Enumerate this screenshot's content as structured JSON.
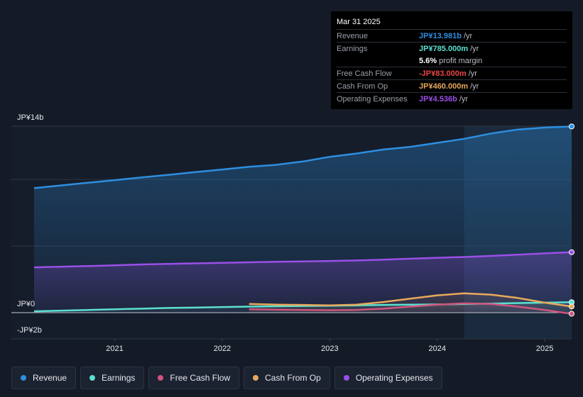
{
  "chart_data": {
    "type": "area",
    "title": "",
    "xlabel": "",
    "ylabel": "",
    "x_ticks": [
      "2021",
      "2022",
      "2023",
      "2024",
      "2025"
    ],
    "y_ticks": [
      "JP¥14b",
      "JP¥0",
      "-JP¥2b"
    ],
    "ylim": [
      -2,
      14
    ],
    "xlim": [
      2020.25,
      2025.25
    ],
    "series": [
      {
        "name": "Revenue",
        "color": "#2d8fe0",
        "x": [
          2020.25,
          2020.75,
          2021.0,
          2021.25,
          2021.5,
          2021.75,
          2022.0,
          2022.25,
          2022.5,
          2022.75,
          2023.0,
          2023.25,
          2023.5,
          2023.75,
          2024.0,
          2024.25,
          2024.5,
          2024.75,
          2025.0,
          2025.25
        ],
        "values": [
          9.35,
          9.75,
          9.95,
          10.15,
          10.35,
          10.55,
          10.75,
          10.95,
          11.1,
          11.35,
          11.7,
          11.95,
          12.25,
          12.45,
          12.75,
          13.05,
          13.45,
          13.75,
          13.9,
          13.98
        ]
      },
      {
        "name": "Earnings",
        "color": "#5ce0d0",
        "x": [
          2020.25,
          2020.75,
          2021.0,
          2021.25,
          2021.5,
          2021.75,
          2022.0,
          2022.25,
          2022.5,
          2022.75,
          2023.0,
          2023.25,
          2023.5,
          2023.75,
          2024.0,
          2024.25,
          2024.5,
          2024.75,
          2025.0,
          2025.25
        ],
        "values": [
          0.1,
          0.2,
          0.25,
          0.3,
          0.35,
          0.38,
          0.42,
          0.45,
          0.48,
          0.5,
          0.52,
          0.55,
          0.58,
          0.6,
          0.62,
          0.65,
          0.68,
          0.72,
          0.75,
          0.785
        ]
      },
      {
        "name": "Free Cash Flow",
        "color": "#d0557e",
        "x": [
          2022.25,
          2022.5,
          2022.75,
          2023.0,
          2023.25,
          2023.5,
          2023.75,
          2024.0,
          2024.25,
          2024.5,
          2024.75,
          2025.0,
          2025.25
        ],
        "values": [
          0.25,
          0.22,
          0.2,
          0.18,
          0.2,
          0.3,
          0.45,
          0.6,
          0.7,
          0.65,
          0.45,
          0.2,
          -0.083
        ]
      },
      {
        "name": "Cash From Op",
        "color": "#e8a95c",
        "x": [
          2022.25,
          2022.5,
          2022.75,
          2023.0,
          2023.25,
          2023.5,
          2023.75,
          2024.0,
          2024.25,
          2024.5,
          2024.75,
          2025.0,
          2025.25
        ],
        "values": [
          0.65,
          0.6,
          0.58,
          0.55,
          0.6,
          0.8,
          1.05,
          1.3,
          1.45,
          1.35,
          1.1,
          0.75,
          0.46
        ]
      },
      {
        "name": "Operating Expenses",
        "color": "#9b4fe8",
        "x": [
          2020.25,
          2020.75,
          2021.0,
          2021.25,
          2021.5,
          2021.75,
          2022.0,
          2022.25,
          2022.5,
          2022.75,
          2023.0,
          2023.25,
          2023.5,
          2023.75,
          2024.0,
          2024.25,
          2024.5,
          2024.75,
          2025.0,
          2025.25
        ],
        "values": [
          3.4,
          3.5,
          3.55,
          3.62,
          3.66,
          3.7,
          3.74,
          3.78,
          3.82,
          3.85,
          3.88,
          3.92,
          3.98,
          4.05,
          4.12,
          4.18,
          4.26,
          4.35,
          4.45,
          4.536
        ]
      }
    ],
    "highlight_from": 2024.25,
    "legend_placement": "bottom-left",
    "grid": true
  },
  "tooltip": {
    "date": "Mar 31 2025",
    "rows": [
      {
        "label": "Revenue",
        "value": "JP¥13.981b",
        "unit": "/yr",
        "color": "#2d8fe0"
      },
      {
        "label": "Earnings",
        "value": "JP¥785.000m",
        "unit": "/yr",
        "color": "#5ce0d0"
      },
      {
        "label": "",
        "value": "5.6%",
        "unit": "profit margin",
        "color": "#ffffff"
      },
      {
        "label": "Free Cash Flow",
        "value": "-JP¥83.000m",
        "unit": "/yr",
        "color": "#e84545"
      },
      {
        "label": "Cash From Op",
        "value": "JP¥460.000m",
        "unit": "/yr",
        "color": "#e8a95c"
      },
      {
        "label": "Operating Expenses",
        "value": "JP¥4.536b",
        "unit": "/yr",
        "color": "#9b4fe8"
      }
    ]
  },
  "legend": [
    {
      "label": "Revenue",
      "color": "#2d8fe0"
    },
    {
      "label": "Earnings",
      "color": "#5ce0d0"
    },
    {
      "label": "Free Cash Flow",
      "color": "#d0557e"
    },
    {
      "label": "Cash From Op",
      "color": "#e8a95c"
    },
    {
      "label": "Operating Expenses",
      "color": "#9b4fe8"
    }
  ]
}
